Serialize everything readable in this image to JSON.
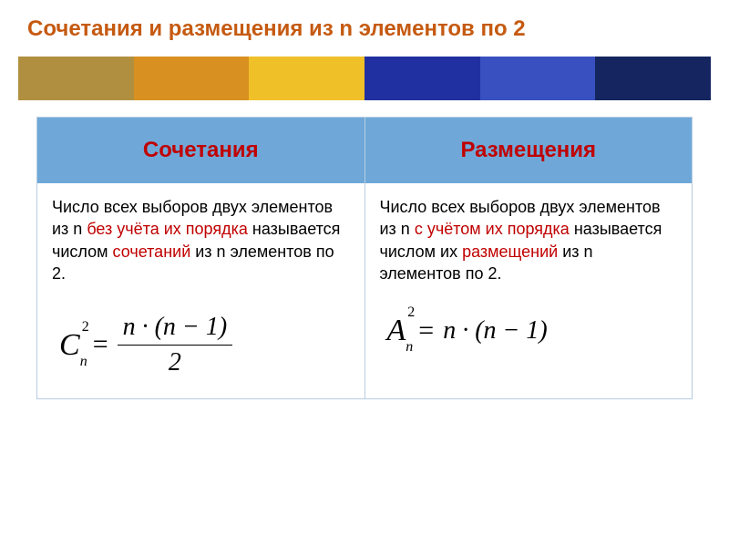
{
  "title_color": "#c55a11",
  "title": "Сочетания  и размещения из n элементов по 2",
  "strip_colors": [
    "#b09040",
    "#d89020",
    "#f0c028",
    "#2030a0",
    "#3850c0",
    "#152560"
  ],
  "table": {
    "header_bg": "#6fa8d8",
    "header_color": "#c00000",
    "border_color": "#b8cde0",
    "columns": [
      {
        "label": "Сочетания"
      },
      {
        "label": "Размещения"
      }
    ],
    "cells": [
      {
        "def_parts": [
          {
            "t": "Число всех выборов двух элементов из n ",
            "red": false
          },
          {
            "t": "без учёта их порядка",
            "red": true
          },
          {
            "t": "  называется числом ",
            "red": false
          },
          {
            "t": "сочетаний",
            "red": true
          },
          {
            "t": "  из n элементов по 2.",
            "red": false
          }
        ],
        "formula": {
          "symbol": "C",
          "sup": "2",
          "sub": "n",
          "rhs_type": "frac",
          "num": "n · (n − 1)",
          "den": "2"
        }
      },
      {
        "def_parts": [
          {
            "t": "Число всех выборов двух элементов из n  ",
            "red": false
          },
          {
            "t": "с учётом их порядка",
            "red": true
          },
          {
            "t": " называется числом их ",
            "red": false
          },
          {
            "t": "размещений",
            "red": true
          },
          {
            "t": " из n элементов по 2.",
            "red": false
          }
        ],
        "formula": {
          "symbol": "A",
          "sup": "2",
          "sub": "n",
          "rhs_type": "plain",
          "rhs": "n · (n − 1)"
        }
      }
    ]
  }
}
